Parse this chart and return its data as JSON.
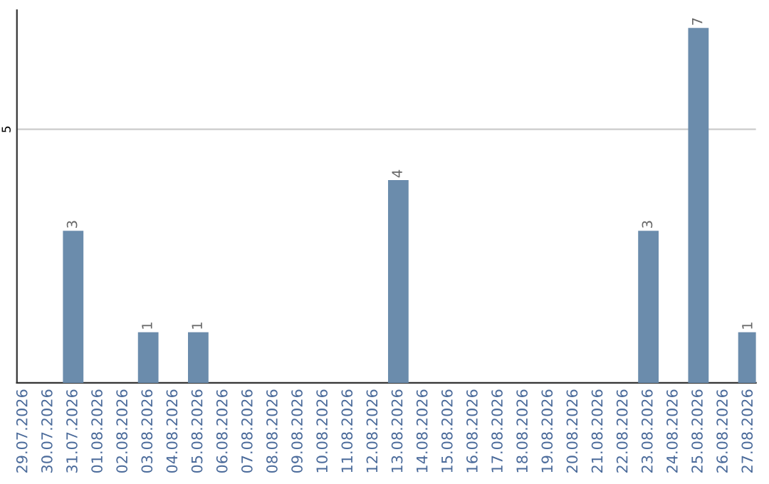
{
  "chart_data": {
    "type": "bar",
    "categories": [
      "29.07.2026",
      "30.07.2026",
      "31.07.2026",
      "01.08.2026",
      "02.08.2026",
      "03.08.2026",
      "04.08.2026",
      "05.08.2026",
      "06.08.2026",
      "07.08.2026",
      "08.08.2026",
      "09.08.2026",
      "10.08.2026",
      "11.08.2026",
      "12.08.2026",
      "13.08.2026",
      "14.08.2026",
      "15.08.2026",
      "16.08.2026",
      "17.08.2026",
      "18.08.2026",
      "19.08.2026",
      "20.08.2026",
      "21.08.2026",
      "22.08.2026",
      "23.08.2026",
      "24.08.2026",
      "25.08.2026",
      "26.08.2026",
      "27.08.2026"
    ],
    "values": [
      null,
      null,
      3,
      null,
      null,
      1,
      null,
      1,
      null,
      null,
      null,
      null,
      null,
      null,
      null,
      4,
      null,
      null,
      null,
      null,
      null,
      null,
      null,
      null,
      null,
      3,
      null,
      7,
      null,
      1
    ],
    "color": "#6b8cac",
    "ylim": [
      0,
      7.35
    ],
    "yticks": [
      5
    ],
    "grid": "y",
    "data_labels": true
  }
}
